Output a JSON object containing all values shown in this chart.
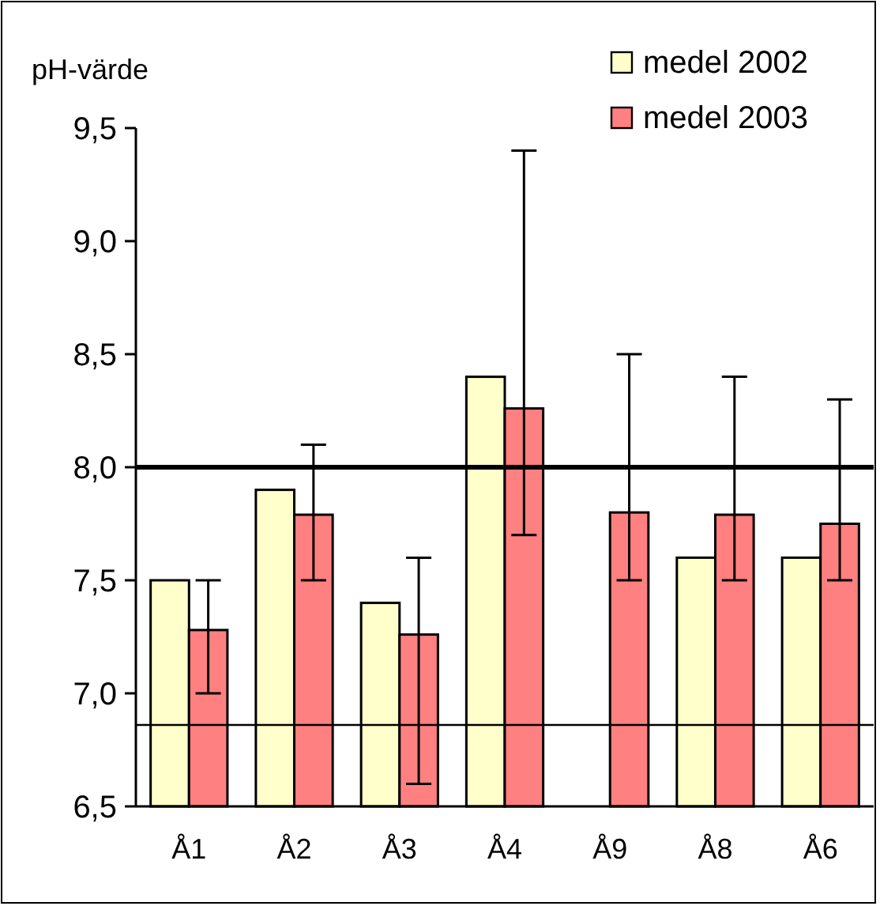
{
  "chart_data": {
    "type": "bar",
    "ylabel": "pH-värde",
    "categories": [
      "Å1",
      "Å2",
      "Å3",
      "Å4",
      "Å9",
      "Å8",
      "Å6"
    ],
    "series": [
      {
        "name": "medel 2002",
        "color": "#ffffcc",
        "values": [
          7.5,
          7.9,
          7.4,
          8.4,
          null,
          7.6,
          7.6
        ]
      },
      {
        "name": "medel 2003",
        "color": "#ff8080",
        "values": [
          7.28,
          7.79,
          7.26,
          8.26,
          7.8,
          7.79,
          7.75
        ],
        "errors": [
          [
            7.0,
            7.5
          ],
          [
            7.5,
            8.1
          ],
          [
            6.6,
            7.6
          ],
          [
            7.7,
            9.4
          ],
          [
            7.5,
            8.5
          ],
          [
            7.5,
            8.4
          ],
          [
            7.5,
            8.3
          ]
        ]
      }
    ],
    "ylim": [
      6.5,
      9.5
    ],
    "yticks": [
      {
        "value": 6.5,
        "label": "6,5"
      },
      {
        "value": 7,
        "label": "7,0"
      },
      {
        "value": 7.5,
        "label": "7,5"
      },
      {
        "value": 8,
        "label": "8,0"
      },
      {
        "value": 8.5,
        "label": "8,5"
      },
      {
        "value": 9,
        "label": "9,0"
      },
      {
        "value": 9.5,
        "label": "9,5"
      }
    ],
    "ref_lines": [
      {
        "axis": "y",
        "value": 8.0,
        "label": null,
        "color": "#000000"
      },
      {
        "axis": "y",
        "value": 6.86,
        "label": null,
        "color": "#000000"
      }
    ],
    "legend": "top right",
    "grid": false
  }
}
